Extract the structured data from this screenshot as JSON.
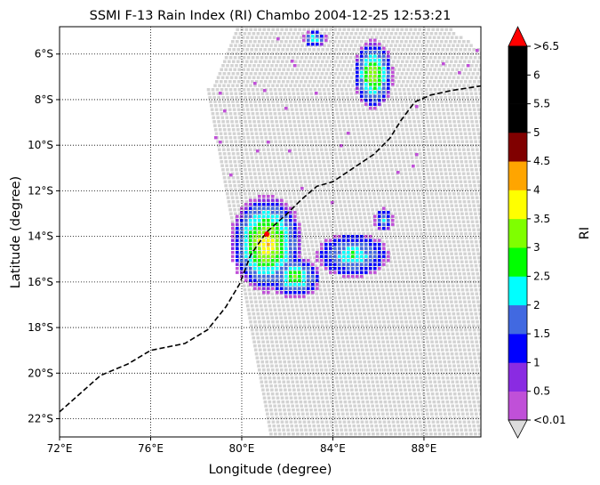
{
  "chart_data": {
    "type": "heatmap",
    "title": "SSMI F-13 Rain Index (RI) Chambo 2004-12-25 12:53:21",
    "xlabel": "Longitude (degree)",
    "ylabel": "Latitude (degree)",
    "xlim": [
      72,
      90.5
    ],
    "ylim": [
      -22.8,
      -4.8
    ],
    "x_ticks": [
      {
        "value": 72,
        "label": "72°E"
      },
      {
        "value": 76,
        "label": "76°E"
      },
      {
        "value": 80,
        "label": "80°E"
      },
      {
        "value": 84,
        "label": "84°E"
      },
      {
        "value": 88,
        "label": "88°E"
      }
    ],
    "y_ticks": [
      {
        "value": -6,
        "label": "6°S"
      },
      {
        "value": -8,
        "label": "8°S"
      },
      {
        "value": -10,
        "label": "10°S"
      },
      {
        "value": -12,
        "label": "12°S"
      },
      {
        "value": -14,
        "label": "14°S"
      },
      {
        "value": -16,
        "label": "16°S"
      },
      {
        "value": -18,
        "label": "18°S"
      },
      {
        "value": -20,
        "label": "20°S"
      },
      {
        "value": -22,
        "label": "22°S"
      }
    ],
    "grid": true,
    "swath_no_rain_color": "#d3d3d3",
    "colorbar": {
      "label": "RI",
      "extend_min_color": "#dcdcdc",
      "extend_max_color": "#ff0000",
      "bins": [
        {
          "color": "#c050d8"
        },
        {
          "color": "#8a2be2"
        },
        {
          "color": "#0000ff"
        },
        {
          "color": "#4169e1"
        },
        {
          "color": "#00ffff"
        },
        {
          "color": "#00ff00"
        },
        {
          "color": "#7fff00"
        },
        {
          "color": "#ffff00"
        },
        {
          "color": "#ffa500"
        },
        {
          "color": "#800000"
        },
        {
          "color": "#000000"
        },
        {
          "color": "#000000"
        },
        {
          "color": "#000000"
        }
      ],
      "tick_labels": [
        "<0.01",
        "0.5",
        "1",
        "1.5",
        "2",
        "2.5",
        "3",
        "3.5",
        "4",
        "4.5",
        "5",
        "5.5",
        "6",
        ">6.5"
      ]
    },
    "storm_track": [
      [
        72.0,
        -21.7
      ],
      [
        73.8,
        -20.1
      ],
      [
        75.0,
        -19.6
      ],
      [
        76.0,
        -19.0
      ],
      [
        77.5,
        -18.7
      ],
      [
        78.5,
        -18.1
      ],
      [
        79.3,
        -17.1
      ],
      [
        79.9,
        -16.1
      ],
      [
        80.4,
        -14.8
      ],
      [
        81.1,
        -13.8
      ],
      [
        82.0,
        -13.0
      ],
      [
        82.6,
        -12.4
      ],
      [
        83.3,
        -11.8
      ],
      [
        84.0,
        -11.6
      ],
      [
        84.9,
        -11.0
      ],
      [
        85.8,
        -10.4
      ],
      [
        86.5,
        -9.7
      ],
      [
        87.0,
        -8.9
      ],
      [
        87.6,
        -8.1
      ],
      [
        88.3,
        -7.8
      ],
      [
        89.2,
        -7.6
      ],
      [
        90.5,
        -7.4
      ]
    ],
    "storm_center": [
      81.1,
      -13.9
    ]
  }
}
